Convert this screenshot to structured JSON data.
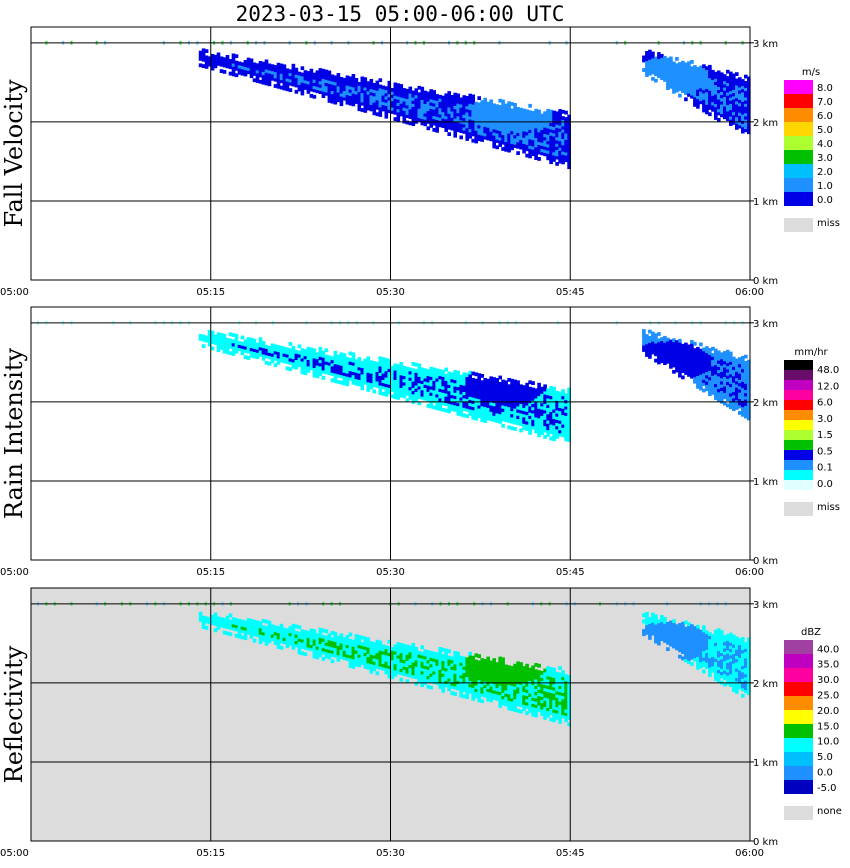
{
  "title": "2023-03-15   05:00-06:00 UTC",
  "chart_data": [
    {
      "type": "heatmap",
      "name": "fall-velocity",
      "ylabel": "Fall Velocity",
      "xlabel": "",
      "x_ticks": [
        "05:00",
        "05:15",
        "05:30",
        "05:45",
        "06:00"
      ],
      "y_ticks": [
        "0 km",
        "1 km",
        "2 km",
        "3 km"
      ],
      "xlim_minutes": [
        0,
        60
      ],
      "ylim_km": [
        0,
        3.2
      ],
      "legend": {
        "unit": "m/s",
        "labels": [
          "8.0",
          "7.0",
          "6.0",
          "5.0",
          "4.0",
          "3.0",
          "2.0",
          "1.0",
          "0.0"
        ],
        "colors": [
          "#ff00ff",
          "#ff0000",
          "#ff8c00",
          "#ffd700",
          "#adff2f",
          "#00c000",
          "#00bfff",
          "#1e90ff",
          "#0000e6"
        ],
        "missing": "miss"
      },
      "background": "#ffffff",
      "echoes": [
        {
          "t0": 14,
          "t1": 45,
          "base_left": 2.7,
          "base_right": 1.4,
          "top_left": 2.9,
          "top_right": 2.1,
          "fill": "#0000e6",
          "core": "#1e90ff",
          "core_center": [
            40,
            2.1
          ]
        },
        {
          "t0": 51,
          "t1": 60,
          "base_left": 2.6,
          "base_right": 1.75,
          "top_left": 2.9,
          "top_right": 2.55,
          "fill": "#0000e6",
          "core": "#1e90ff",
          "core_center": [
            53,
            2.55
          ]
        }
      ]
    },
    {
      "type": "heatmap",
      "name": "rain-intensity",
      "ylabel": "Rain Intensity",
      "xlabel": "",
      "x_ticks": [
        "05:00",
        "05:15",
        "05:30",
        "05:45",
        "06:00"
      ],
      "y_ticks": [
        "0 km",
        "1 km",
        "2 km",
        "3 km"
      ],
      "xlim_minutes": [
        0,
        60
      ],
      "ylim_km": [
        0,
        3.2
      ],
      "legend": {
        "unit": "mm/hr",
        "labels": [
          "48.0",
          "12.0",
          "6.0",
          "3.0",
          "1.5",
          "0.5",
          "0.1",
          "0.0"
        ],
        "colors": [
          "#000000",
          "#6a0d6a",
          "#c000c0",
          "#ff00a0",
          "#ff0000",
          "#ff8c00",
          "#ffff00",
          "#adff2f",
          "#00c000",
          "#0000e6",
          "#1e90ff",
          "#00ffff",
          "#e0ffff"
        ],
        "missing": "miss"
      },
      "background": "#ffffff",
      "echoes": [
        {
          "t0": 14,
          "t1": 45,
          "base_left": 2.7,
          "base_right": 1.45,
          "top_left": 2.9,
          "top_right": 2.15,
          "fill": "#00ffff",
          "core": "#0000e6",
          "core_center": [
            39.5,
            2.2
          ]
        },
        {
          "t0": 51,
          "t1": 60,
          "base_left": 2.6,
          "base_right": 1.75,
          "top_left": 2.9,
          "top_right": 2.55,
          "fill": "#1e90ff",
          "core": "#0000e6",
          "core_center": [
            53,
            2.5
          ]
        }
      ]
    },
    {
      "type": "heatmap",
      "name": "reflectivity",
      "ylabel": "Reflectivity",
      "xlabel": "",
      "x_ticks": [
        "05:00",
        "05:15",
        "05:30",
        "05:45",
        "06:00"
      ],
      "y_ticks": [
        "0 km",
        "1 km",
        "2 km",
        "3 km"
      ],
      "xlim_minutes": [
        0,
        60
      ],
      "ylim_km": [
        0,
        3.2
      ],
      "legend": {
        "unit": "dBZ",
        "labels": [
          "40.0",
          "35.0",
          "30.0",
          "25.0",
          "20.0",
          "15.0",
          "10.0",
          "5.0",
          "0.0",
          "-5.0"
        ],
        "colors": [
          "#a040a0",
          "#c000c0",
          "#ff00a0",
          "#ff0000",
          "#ff8c00",
          "#ffff00",
          "#00c000",
          "#00ffff",
          "#00bfff",
          "#1e90ff",
          "#0000c0"
        ],
        "missing": "none"
      },
      "background": "#dcdcdc",
      "echoes": [
        {
          "t0": 14,
          "t1": 45,
          "base_left": 2.7,
          "base_right": 1.45,
          "top_left": 2.9,
          "top_right": 2.15,
          "fill": "#00ffff",
          "core": "#00c000",
          "core_center": [
            39.5,
            2.2
          ]
        },
        {
          "t0": 51,
          "t1": 60,
          "base_left": 2.6,
          "base_right": 1.75,
          "top_left": 2.9,
          "top_right": 2.55,
          "fill": "#00ffff",
          "core": "#1e90ff",
          "core_center": [
            53,
            2.5
          ]
        }
      ]
    }
  ]
}
